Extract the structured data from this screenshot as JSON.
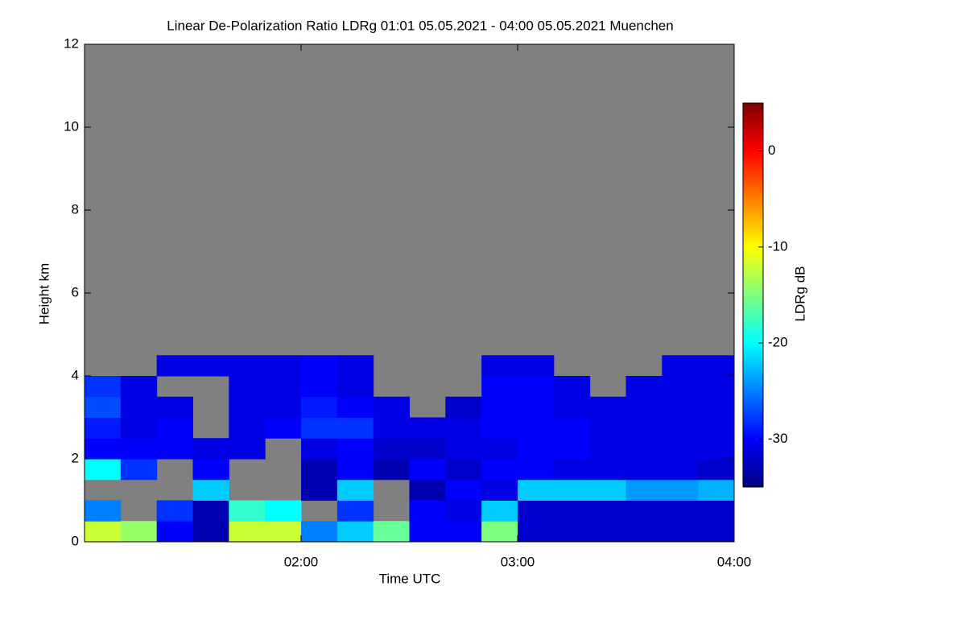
{
  "chart_data": {
    "type": "heatmap",
    "title": "Linear De-Polarization Ratio LDRg   01:01 05.05.2021 - 04:00 05.05.2021 Muenchen",
    "x_label": "Time UTC",
    "y_label": "Height km",
    "colorbar_label": "LDRg dB",
    "xlim": [
      60,
      240
    ],
    "xticks": [
      {
        "value": 120,
        "label": "02:00"
      },
      {
        "value": 180,
        "label": "03:00"
      },
      {
        "value": 240,
        "label": "04:00"
      }
    ],
    "ylim": [
      0,
      12
    ],
    "yticks": [
      0,
      2,
      4,
      6,
      8,
      10,
      12
    ],
    "zlim": [
      -35,
      5
    ],
    "zticks": [
      0,
      -10,
      -20,
      -30
    ],
    "colormap": [
      "#00007f",
      "#0000ff",
      "#007fff",
      "#00ffff",
      "#7fff7f",
      "#ffff00",
      "#ff7f00",
      "#ff0000",
      "#7f0000"
    ],
    "nodata_color": "#808080",
    "x_bins": [
      60,
      70,
      80,
      90,
      100,
      110,
      120,
      130,
      140,
      150,
      160,
      170,
      180,
      190,
      200,
      210,
      220,
      230,
      240
    ],
    "y_bins": [
      0,
      0.5,
      1,
      1.5,
      2,
      2.5,
      3,
      3.5,
      4,
      4.5,
      5
    ],
    "z": [
      [
        -12,
        -14,
        -30,
        -33,
        -12,
        -12,
        -25,
        -22,
        -16,
        -30,
        -30,
        -15,
        -32,
        -32,
        -32,
        -32,
        -32,
        -32
      ],
      [
        -25,
        null,
        -28,
        -33,
        -18,
        -20,
        null,
        -28,
        null,
        -30,
        -31,
        -22,
        -32,
        -32,
        -32,
        -32,
        -32,
        -32
      ],
      [
        null,
        null,
        null,
        -22,
        null,
        null,
        -33,
        -22,
        null,
        -33,
        -30,
        -31,
        -22,
        -22,
        -22,
        -24,
        -24,
        -23
      ],
      [
        -20,
        -28,
        null,
        -30,
        null,
        null,
        -33,
        -30,
        -33,
        -30,
        -32,
        -30,
        -30,
        -31,
        -31,
        -31,
        -31,
        -32
      ],
      [
        -30,
        -30,
        -30,
        -31,
        -31,
        null,
        -31,
        -30,
        -32,
        -32,
        -31,
        -31,
        -30,
        -30,
        -31,
        -31,
        -31,
        -31
      ],
      [
        -29,
        -31,
        -30,
        null,
        -31,
        -30,
        -28,
        -28,
        -31,
        -31,
        -31,
        -30,
        -30,
        -30,
        -31,
        -31,
        -31,
        -31
      ],
      [
        -27,
        -31,
        -31,
        null,
        -31,
        -31,
        -29,
        -30,
        -31,
        null,
        -32,
        -30,
        -30,
        -31,
        -31,
        -31,
        -31,
        -31
      ],
      [
        -28,
        -31,
        null,
        null,
        -31,
        -31,
        -30,
        -31,
        null,
        null,
        null,
        -30,
        -30,
        -31,
        null,
        -31,
        -31,
        -31
      ],
      [
        null,
        null,
        -31,
        -31,
        -31,
        -31,
        -30,
        -31,
        null,
        null,
        null,
        -31,
        -31,
        null,
        null,
        null,
        -31,
        -31
      ],
      [
        null,
        null,
        null,
        null,
        null,
        null,
        null,
        null,
        null,
        null,
        null,
        null,
        null,
        null,
        null,
        null,
        null,
        null
      ]
    ]
  }
}
